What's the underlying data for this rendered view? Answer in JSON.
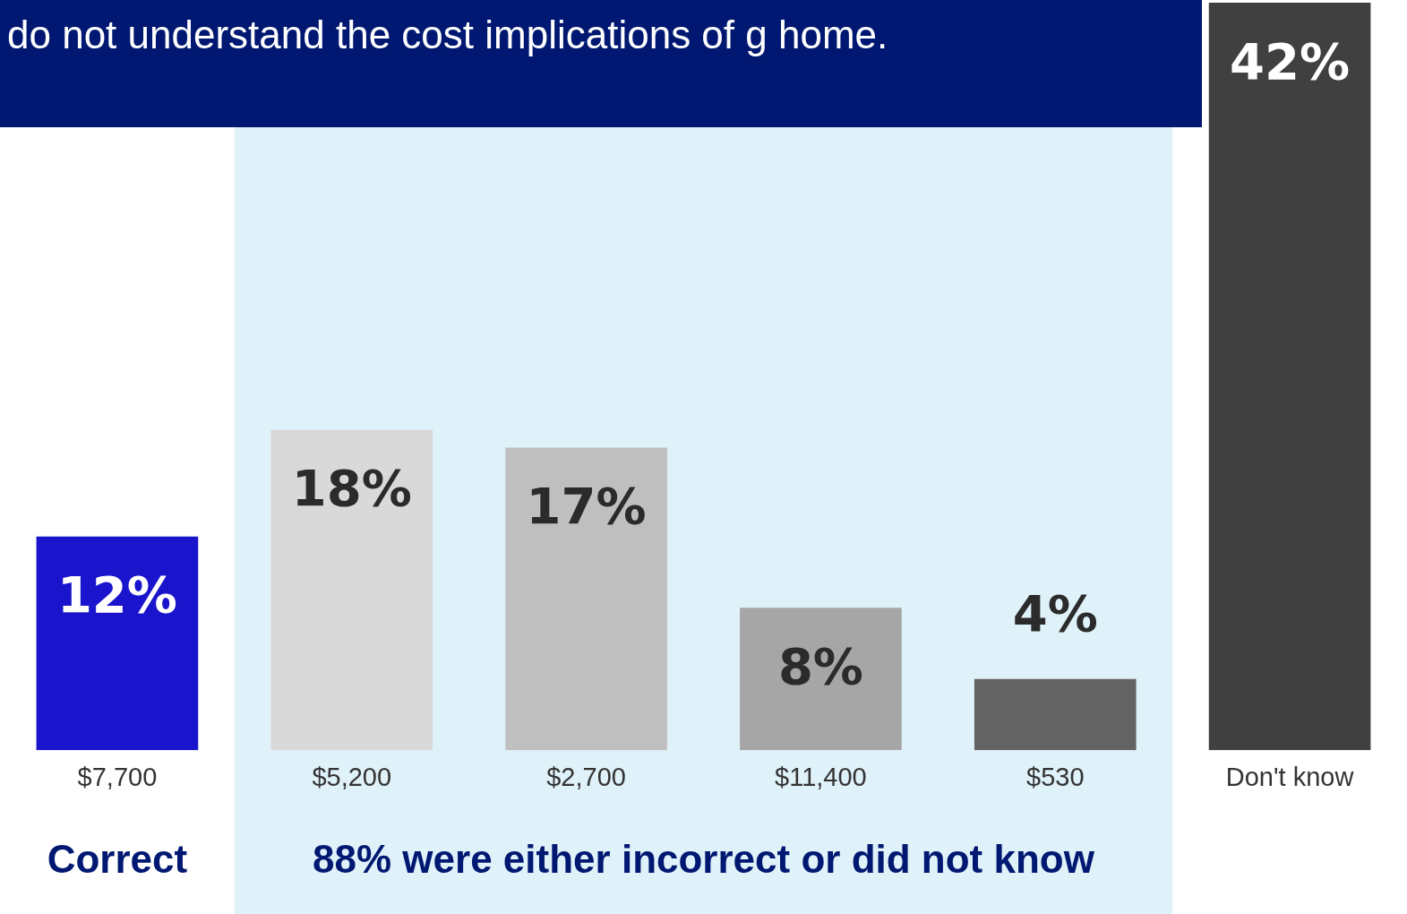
{
  "chart_data": {
    "type": "bar",
    "title": "do not understand the cost implications of g home.",
    "categories": [
      "$7,700",
      "$5,200",
      "$2,700",
      "$11,400",
      "$530",
      "Don't know"
    ],
    "values": [
      12,
      18,
      17,
      8,
      4,
      42
    ],
    "colors": [
      "#1a14cc",
      "#d9d9d9",
      "#bfbfbf",
      "#a6a6a6",
      "#636363",
      "#404040"
    ],
    "value_labels": [
      "12%",
      "18%",
      "17%",
      "8%",
      "4%",
      "42%"
    ],
    "tick_labels": "x",
    "legend": false,
    "bands": [
      {
        "axis": "x",
        "from": "$5,200",
        "to": "$530",
        "color": "#dff1f9"
      }
    ],
    "annotations": [
      "Correct",
      "88% were either incorrect or did not know"
    ]
  }
}
